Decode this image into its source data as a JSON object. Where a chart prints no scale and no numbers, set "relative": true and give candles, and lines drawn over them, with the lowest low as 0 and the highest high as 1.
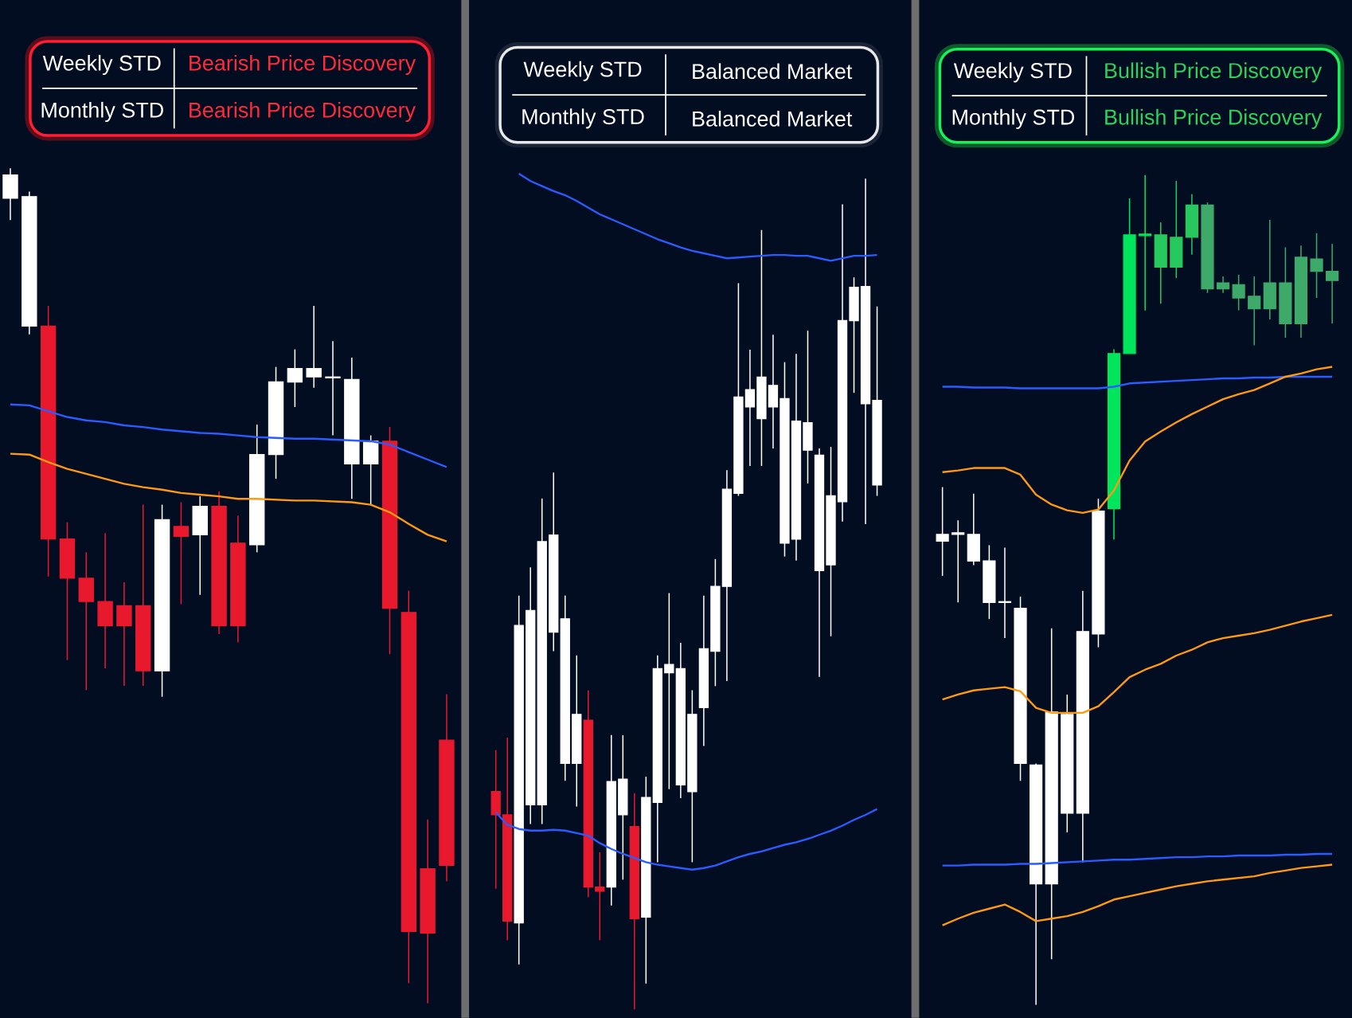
{
  "chart_data": [
    {
      "type": "candlestick",
      "relative": true,
      "categories": [
        null,
        null,
        null,
        null,
        null,
        null,
        null,
        null,
        null,
        null,
        null,
        null,
        null,
        null,
        null,
        null,
        null,
        null,
        null,
        null,
        null,
        null,
        null,
        null
      ],
      "ohlc": [
        [
          0.964,
          1.0,
          0.938,
          0.992
        ],
        [
          0.811,
          0.972,
          0.801,
          0.966
        ],
        [
          0.811,
          0.835,
          0.511,
          0.556
        ],
        [
          0.556,
          0.576,
          0.411,
          0.509
        ],
        [
          0.509,
          0.54,
          0.375,
          0.481
        ],
        [
          0.481,
          0.563,
          0.401,
          0.452
        ],
        [
          0.476,
          0.504,
          0.38,
          0.452
        ],
        [
          0.476,
          0.597,
          0.38,
          0.398
        ],
        [
          0.398,
          0.597,
          0.367,
          0.579
        ],
        [
          0.571,
          0.6,
          0.478,
          0.559
        ],
        [
          0.561,
          0.607,
          0.489,
          0.595
        ],
        [
          0.595,
          0.613,
          0.442,
          0.452
        ],
        [
          0.551,
          0.584,
          0.432,
          0.452
        ],
        [
          0.549,
          0.693,
          0.54,
          0.657
        ],
        [
          0.657,
          0.762,
          0.628,
          0.744
        ],
        [
          0.744,
          0.783,
          0.714,
          0.76
        ],
        [
          0.75,
          0.835,
          0.737,
          0.76
        ],
        [
          0.749,
          0.793,
          0.68,
          0.75
        ],
        [
          0.646,
          0.773,
          0.604,
          0.747
        ],
        [
          0.646,
          0.68,
          0.597,
          0.673
        ],
        [
          0.673,
          0.69,
          0.418,
          0.473
        ],
        [
          0.468,
          0.494,
          0.024,
          0.086
        ],
        [
          0.161,
          0.22,
          0.0,
          0.084
        ],
        [
          0.315,
          0.37,
          0.146,
          0.165
        ]
      ],
      "colors": [
        "#ffffff",
        "#ffffff",
        "#e8192c",
        "#e8192c",
        "#e8192c",
        "#e8192c",
        "#e8192c",
        "#e8192c",
        "#ffffff",
        "#e8192c",
        "#ffffff",
        "#e8192c",
        "#e8192c",
        "#ffffff",
        "#ffffff",
        "#ffffff",
        "#ffffff",
        "#ffffff",
        "#ffffff",
        "#ffffff",
        "#e8192c",
        "#e8192c",
        "#e8192c",
        "#e8192c"
      ],
      "series": [
        {
          "type": "line",
          "color": "#2a5cff",
          "values": [
            0.717,
            0.716,
            0.709,
            0.702,
            0.698,
            0.696,
            0.692,
            0.69,
            0.687,
            0.685,
            0.683,
            0.682,
            0.68,
            0.678,
            0.677,
            0.676,
            0.676,
            0.675,
            0.674,
            0.673,
            0.669,
            0.66,
            0.651,
            0.642
          ]
        },
        {
          "type": "line",
          "color": "#ff9a10",
          "values": [
            0.658,
            0.657,
            0.648,
            0.64,
            0.634,
            0.628,
            0.622,
            0.618,
            0.615,
            0.611,
            0.609,
            0.607,
            0.604,
            0.604,
            0.603,
            0.602,
            0.602,
            0.601,
            0.6,
            0.597,
            0.588,
            0.574,
            0.561,
            0.553
          ]
        }
      ],
      "annotations": [
        "Weekly STD",
        "Bearish Price Discovery",
        "Monthly STD",
        "Bearish Price Discovery"
      ]
    },
    {
      "type": "candlestick",
      "relative": true,
      "categories": [
        null,
        null,
        null,
        null,
        null,
        null,
        null,
        null,
        null,
        null,
        null,
        null,
        null,
        null,
        null,
        null,
        null,
        null,
        null,
        null,
        null,
        null,
        null,
        null,
        null,
        null,
        null,
        null,
        null,
        null,
        null,
        null,
        null,
        null
      ],
      "ohlc": [
        [
          0.262,
          0.312,
          0.145,
          0.234
        ],
        [
          0.234,
          0.327,
          0.083,
          0.106
        ],
        [
          0.104,
          0.498,
          0.054,
          0.462
        ],
        [
          0.246,
          0.532,
          0.223,
          0.48
        ],
        [
          0.246,
          0.615,
          0.223,
          0.563
        ],
        [
          0.454,
          0.646,
          0.431,
          0.571
        ],
        [
          0.296,
          0.498,
          0.275,
          0.47
        ],
        [
          0.296,
          0.426,
          0.244,
          0.355
        ],
        [
          0.348,
          0.384,
          0.135,
          0.147
        ],
        [
          0.147,
          0.189,
          0.083,
          0.142
        ],
        [
          0.147,
          0.33,
          0.125,
          0.274
        ],
        [
          0.234,
          0.33,
          0.156,
          0.277
        ],
        [
          0.22,
          0.26,
          0.0,
          0.109
        ],
        [
          0.111,
          0.28,
          0.031,
          0.255
        ],
        [
          0.249,
          0.426,
          0.177,
          0.41
        ],
        [
          0.405,
          0.501,
          0.265,
          0.415
        ],
        [
          0.27,
          0.441,
          0.254,
          0.41
        ],
        [
          0.262,
          0.384,
          0.177,
          0.355
        ],
        [
          0.363,
          0.498,
          0.317,
          0.434
        ],
        [
          0.431,
          0.542,
          0.389,
          0.509
        ],
        [
          0.509,
          0.649,
          0.395,
          0.626
        ],
        [
          0.621,
          0.874,
          0.618,
          0.737
        ],
        [
          0.725,
          0.794,
          0.654,
          0.746
        ],
        [
          0.711,
          0.938,
          0.654,
          0.761
        ],
        [
          0.725,
          0.812,
          0.675,
          0.751
        ],
        [
          0.561,
          0.779,
          0.545,
          0.735
        ],
        [
          0.566,
          0.789,
          0.54,
          0.708
        ],
        [
          0.673,
          0.817,
          0.633,
          0.706
        ],
        [
          0.528,
          0.675,
          0.4,
          0.667
        ],
        [
          0.535,
          0.677,
          0.449,
          0.618
        ],
        [
          0.611,
          0.969,
          0.587,
          0.829
        ],
        [
          0.829,
          0.881,
          0.742,
          0.869
        ],
        [
          0.729,
          1.0,
          0.584,
          0.87
        ],
        [
          0.631,
          0.846,
          0.618,
          0.733
        ]
      ],
      "colors": [
        "#e8192c",
        "#e8192c",
        "#ffffff",
        "#ffffff",
        "#ffffff",
        "#ffffff",
        "#ffffff",
        "#ffffff",
        "#e8192c",
        "#e8192c",
        "#ffffff",
        "#ffffff",
        "#e8192c",
        "#ffffff",
        "#ffffff",
        "#ffffff",
        "#ffffff",
        "#ffffff",
        "#ffffff",
        "#ffffff",
        "#ffffff",
        "#ffffff",
        "#ffffff",
        "#ffffff",
        "#ffffff",
        "#ffffff",
        "#ffffff",
        "#ffffff",
        "#ffffff",
        "#ffffff",
        "#ffffff",
        "#ffffff",
        "#ffffff",
        "#ffffff"
      ],
      "series": [
        {
          "type": "line",
          "color": "#2a5cff",
          "values": [
            null,
            null,
            1.006,
            0.997,
            0.991,
            0.985,
            0.98,
            0.973,
            0.965,
            0.957,
            0.951,
            0.945,
            0.939,
            0.933,
            0.927,
            0.922,
            0.917,
            0.913,
            0.91,
            0.907,
            0.904,
            0.905,
            0.906,
            0.907,
            0.908,
            0.908,
            0.907,
            0.907,
            0.904,
            0.901,
            0.904,
            0.907,
            0.907,
            0.908
          ]
        },
        {
          "type": "line",
          "color": "#2a5cff",
          "values": [
            0.237,
            0.222,
            0.217,
            0.215,
            0.215,
            0.216,
            0.215,
            0.212,
            0.209,
            0.2,
            0.193,
            0.187,
            0.182,
            0.177,
            0.174,
            0.172,
            0.17,
            0.168,
            0.17,
            0.173,
            0.178,
            0.183,
            0.187,
            0.19,
            0.194,
            0.198,
            0.201,
            0.205,
            0.21,
            0.215,
            0.221,
            0.228,
            0.234,
            0.241
          ]
        }
      ],
      "annotations": [
        "Weekly STD",
        "Balanced Market",
        "Monthly STD",
        "Balanced Market"
      ]
    },
    {
      "type": "candlestick",
      "relative": true,
      "categories": [
        null,
        null,
        null,
        null,
        null,
        null,
        null,
        null,
        null,
        null,
        null,
        null,
        null,
        null,
        null,
        null,
        null,
        null,
        null,
        null,
        null,
        null,
        null,
        null,
        null,
        null
      ],
      "ohlc": [
        [
          0.559,
          0.624,
          0.517,
          0.567
        ],
        [
          0.567,
          0.584,
          0.485,
          0.569
        ],
        [
          0.535,
          0.616,
          0.53,
          0.567
        ],
        [
          0.485,
          0.554,
          0.465,
          0.535
        ],
        [
          0.485,
          0.551,
          0.442,
          0.486
        ],
        [
          0.291,
          0.492,
          0.27,
          0.478
        ],
        [
          0.146,
          0.291,
          0.0,
          0.289
        ],
        [
          0.146,
          0.454,
          0.055,
          0.353
        ],
        [
          0.231,
          0.374,
          0.208,
          0.35
        ],
        [
          0.231,
          0.499,
          0.172,
          0.45
        ],
        [
          0.447,
          0.61,
          0.431,
          0.595
        ],
        [
          0.598,
          0.79,
          0.561,
          0.785
        ],
        [
          0.785,
          0.972,
          0.785,
          0.928
        ],
        [
          0.927,
          1.0,
          0.837,
          0.929
        ],
        [
          0.889,
          0.943,
          0.845,
          0.928
        ],
        [
          0.889,
          0.993,
          0.876,
          0.925
        ],
        [
          0.925,
          0.977,
          0.904,
          0.964
        ],
        [
          0.964,
          0.967,
          0.858,
          0.863
        ],
        [
          0.87,
          0.878,
          0.858,
          0.863
        ],
        [
          0.868,
          0.88,
          0.837,
          0.852
        ],
        [
          0.854,
          0.878,
          0.795,
          0.839
        ],
        [
          0.87,
          0.946,
          0.826,
          0.839
        ],
        [
          0.87,
          0.913,
          0.804,
          0.821
        ],
        [
          0.901,
          0.915,
          0.804,
          0.821
        ],
        [
          0.899,
          0.93,
          0.852,
          0.884
        ],
        [
          0.884,
          0.917,
          0.821,
          0.873
        ]
      ],
      "colors": [
        "#ffffff",
        "#ffffff",
        "#ffffff",
        "#ffffff",
        "#ffffff",
        "#ffffff",
        "#ffffff",
        "#ffffff",
        "#ffffff",
        "#ffffff",
        "#ffffff",
        "#00e65c",
        "#00e65c",
        "#00e65c",
        "#27c95f",
        "#27c95f",
        "#27c95f",
        "#3daa6a",
        "#3daa6a",
        "#3daa6a",
        "#3daa6a",
        "#3daa6a",
        "#3daa6a",
        "#3daa6a",
        "#3daa6a",
        "#3daa6a"
      ],
      "series": [
        {
          "type": "line",
          "color": "#2a5cff",
          "values": [
            0.745,
            0.745,
            0.744,
            0.744,
            0.744,
            0.743,
            0.743,
            0.743,
            0.743,
            0.743,
            0.743,
            0.745,
            0.749,
            0.75,
            0.751,
            0.752,
            0.753,
            0.754,
            0.755,
            0.755,
            0.756,
            0.756,
            0.757,
            0.757,
            0.757,
            0.757
          ]
        },
        {
          "type": "line",
          "color": "#ff9a10",
          "values": [
            0.642,
            0.644,
            0.647,
            0.647,
            0.647,
            0.639,
            0.615,
            0.603,
            0.596,
            0.593,
            0.597,
            0.62,
            0.656,
            0.679,
            0.691,
            0.702,
            0.712,
            0.721,
            0.73,
            0.736,
            0.741,
            0.749,
            0.757,
            0.761,
            0.766,
            0.769
          ]
        },
        {
          "type": "line",
          "color": "#ff9a10",
          "values": [
            0.368,
            0.374,
            0.379,
            0.381,
            0.383,
            0.378,
            0.358,
            0.352,
            0.352,
            0.352,
            0.36,
            0.377,
            0.395,
            0.404,
            0.411,
            0.421,
            0.428,
            0.437,
            0.442,
            0.445,
            0.448,
            0.452,
            0.457,
            0.462,
            0.466,
            0.47
          ]
        },
        {
          "type": "line",
          "color": "#2a5cff",
          "values": [
            0.168,
            0.168,
            0.169,
            0.169,
            0.169,
            0.17,
            0.17,
            0.171,
            0.172,
            0.173,
            0.174,
            0.175,
            0.175,
            0.176,
            0.177,
            0.178,
            0.178,
            0.179,
            0.179,
            0.18,
            0.18,
            0.18,
            0.181,
            0.181,
            0.182,
            0.182
          ]
        },
        {
          "type": "line",
          "color": "#ff9a10",
          "values": [
            0.096,
            0.104,
            0.111,
            0.116,
            0.121,
            0.112,
            0.101,
            0.104,
            0.107,
            0.112,
            0.119,
            0.127,
            0.131,
            0.135,
            0.139,
            0.143,
            0.146,
            0.149,
            0.151,
            0.153,
            0.155,
            0.159,
            0.162,
            0.165,
            0.167,
            0.169
          ]
        }
      ],
      "annotations": [
        "Weekly STD",
        "Bullish Price Discovery",
        "Monthly STD",
        "Bullish Price Discovery"
      ]
    }
  ]
}
